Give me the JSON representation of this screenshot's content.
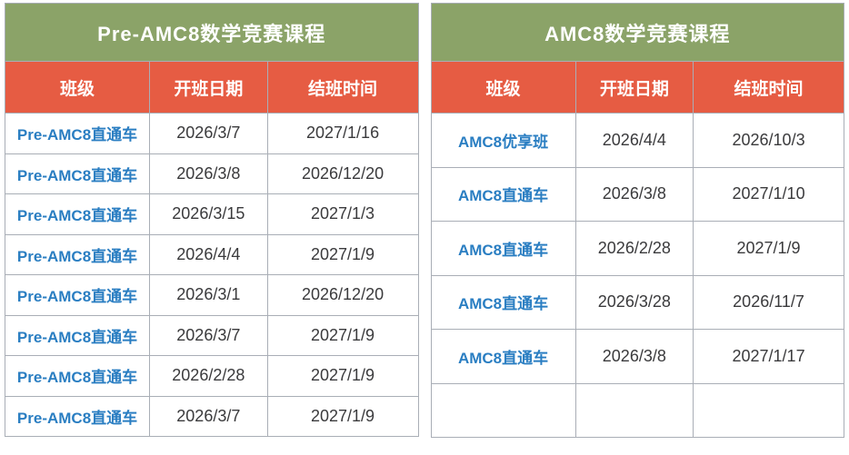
{
  "colors": {
    "title_bg": "#8BA368",
    "header_bg": "#E65C43",
    "class_text": "#2A7EC2",
    "date_text": "#3A3A3C",
    "border": "#A9AEB6"
  },
  "tables": [
    {
      "title": "Pre-AMC8数学竞赛课程",
      "columns": [
        "班级",
        "开班日期",
        "结班时间"
      ],
      "rows": [
        [
          "Pre-AMC8直通车",
          "2026/3/7",
          "2027/1/16"
        ],
        [
          "Pre-AMC8直通车",
          "2026/3/8",
          "2026/12/20"
        ],
        [
          "Pre-AMC8直通车",
          "2026/3/15",
          "2027/1/3"
        ],
        [
          "Pre-AMC8直通车",
          "2026/4/4",
          "2027/1/9"
        ],
        [
          "Pre-AMC8直通车",
          "2026/3/1",
          "2026/12/20"
        ],
        [
          "Pre-AMC8直通车",
          "2026/3/7",
          "2027/1/9"
        ],
        [
          "Pre-AMC8直通车",
          "2026/2/28",
          "2027/1/9"
        ],
        [
          "Pre-AMC8直通车",
          "2026/3/7",
          "2027/1/9"
        ]
      ]
    },
    {
      "title": "AMC8数学竞赛课程",
      "columns": [
        "班级",
        "开班日期",
        "结班时间"
      ],
      "rows": [
        [
          "AMC8优享班",
          "2026/4/4",
          "2026/10/3"
        ],
        [
          "AMC8直通车",
          "2026/3/8",
          "2027/1/10"
        ],
        [
          "AMC8直通车",
          "2026/2/28",
          "2027/1/9"
        ],
        [
          "AMC8直通车",
          "2026/3/28",
          "2026/11/7"
        ],
        [
          "AMC8直通车",
          "2026/3/8",
          "2027/1/17"
        ],
        [
          "",
          "",
          ""
        ]
      ]
    }
  ]
}
